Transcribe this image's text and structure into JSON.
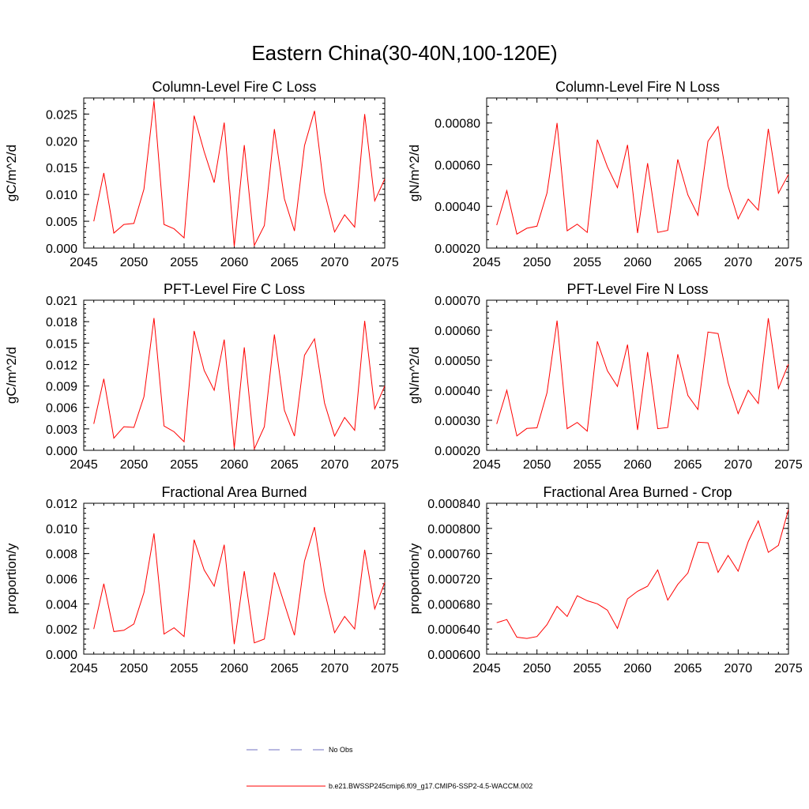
{
  "figure": {
    "title": "Eastern China(30-40N,100-120E)"
  },
  "chart_data": [
    {
      "type": "line",
      "title": "Column-Level Fire C Loss",
      "xlabel": "",
      "ylabel": "gC/m^2/d",
      "xlim": [
        2045,
        2075
      ],
      "ylim": [
        0,
        0.028
      ],
      "xticks": [
        2045,
        2050,
        2055,
        2060,
        2065,
        2070,
        2075
      ],
      "xticklabels": [
        "2045",
        "2050",
        "2055",
        "2060",
        "2065",
        "2070",
        "2075"
      ],
      "yticks": [
        0,
        0.005,
        0.01,
        0.015,
        0.02,
        0.025
      ],
      "yticklabels": [
        "0.000",
        "0.005",
        "0.010",
        "0.015",
        "0.020",
        "0.025"
      ],
      "yminor": 0.001,
      "x": [
        2046,
        2047,
        2048,
        2049,
        2050,
        2051,
        2052,
        2053,
        2054,
        2055,
        2056,
        2057,
        2058,
        2059,
        2060,
        2061,
        2062,
        2063,
        2064,
        2065,
        2066,
        2067,
        2068,
        2069,
        2070,
        2071,
        2072,
        2073,
        2074,
        2075
      ],
      "series": [
        {
          "name": "b.e21.BWSSP245cmip6.f09_g17.CMIP6-SSP2-4.5-WACCM.002",
          "color": "#ff0000",
          "values": [
            0.005,
            0.014,
            0.0028,
            0.0044,
            0.0046,
            0.011,
            0.0275,
            0.0044,
            0.0036,
            0.0019,
            0.0247,
            0.018,
            0.0122,
            0.0234,
            0.0003,
            0.0192,
            0.0005,
            0.0042,
            0.0222,
            0.0092,
            0.0032,
            0.0191,
            0.0256,
            0.0104,
            0.003,
            0.0062,
            0.0039,
            0.025,
            0.0088,
            0.0129
          ]
        }
      ]
    },
    {
      "type": "line",
      "title": "Column-Level Fire N Loss",
      "xlabel": "",
      "ylabel": "gN/m^2/d",
      "xlim": [
        2045,
        2075
      ],
      "ylim": [
        0.0002,
        0.00092
      ],
      "xticks": [
        2045,
        2050,
        2055,
        2060,
        2065,
        2070,
        2075
      ],
      "xticklabels": [
        "2045",
        "2050",
        "2055",
        "2060",
        "2065",
        "2070",
        "2075"
      ],
      "yticks": [
        0.0002,
        0.0004,
        0.0006,
        0.0008
      ],
      "yticklabels": [
        "0.00020",
        "0.00040",
        "0.00060",
        "0.00080"
      ],
      "yminor": 4e-05,
      "x": [
        2046,
        2047,
        2048,
        2049,
        2050,
        2051,
        2052,
        2053,
        2054,
        2055,
        2056,
        2057,
        2058,
        2059,
        2060,
        2061,
        2062,
        2063,
        2064,
        2065,
        2066,
        2067,
        2068,
        2069,
        2070,
        2071,
        2072,
        2073,
        2074,
        2075
      ],
      "series": [
        {
          "name": "b.e21.BWSSP245cmip6.f09_g17.CMIP6-SSP2-4.5-WACCM.002",
          "color": "#ff0000",
          "values": [
            0.00031,
            0.000475,
            0.000267,
            0.000295,
            0.000305,
            0.000465,
            0.0008,
            0.000283,
            0.000315,
            0.000275,
            0.00072,
            0.00059,
            0.00049,
            0.000695,
            0.000272,
            0.000607,
            0.000275,
            0.000285,
            0.000625,
            0.000455,
            0.000357,
            0.000712,
            0.000783,
            0.000497,
            0.00034,
            0.000435,
            0.000382,
            0.000772,
            0.000463,
            0.000553
          ]
        }
      ]
    },
    {
      "type": "line",
      "title": "PFT-Level Fire C Loss",
      "xlabel": "",
      "ylabel": "gC/m^2/d",
      "xlim": [
        2045,
        2075
      ],
      "ylim": [
        0,
        0.021
      ],
      "xticks": [
        2045,
        2050,
        2055,
        2060,
        2065,
        2070,
        2075
      ],
      "xticklabels": [
        "2045",
        "2050",
        "2055",
        "2060",
        "2065",
        "2070",
        "2075"
      ],
      "yticks": [
        0,
        0.003,
        0.006,
        0.009,
        0.012,
        0.015,
        0.018,
        0.021
      ],
      "yticklabels": [
        "0.000",
        "0.003",
        "0.006",
        "0.009",
        "0.012",
        "0.015",
        "0.018",
        "0.021"
      ],
      "yminor": 0.0006,
      "x": [
        2046,
        2047,
        2048,
        2049,
        2050,
        2051,
        2052,
        2053,
        2054,
        2055,
        2056,
        2057,
        2058,
        2059,
        2060,
        2061,
        2062,
        2063,
        2064,
        2065,
        2066,
        2067,
        2068,
        2069,
        2070,
        2071,
        2072,
        2073,
        2074,
        2075
      ],
      "series": [
        {
          "name": "b.e21.BWSSP245cmip6.f09_g17.CMIP6-SSP2-4.5-WACCM.002",
          "color": "#ff0000",
          "values": [
            0.0037,
            0.01,
            0.0017,
            0.0033,
            0.0032,
            0.0075,
            0.0185,
            0.0034,
            0.0026,
            0.0012,
            0.0167,
            0.0112,
            0.0084,
            0.0155,
            0.0003,
            0.0144,
            0.0002,
            0.0033,
            0.0162,
            0.0056,
            0.002,
            0.0133,
            0.0156,
            0.0066,
            0.002,
            0.0046,
            0.0028,
            0.0181,
            0.0058,
            0.009
          ]
        }
      ]
    },
    {
      "type": "line",
      "title": "PFT-Level Fire N Loss",
      "xlabel": "",
      "ylabel": "gN/m^2/d",
      "xlim": [
        2045,
        2075
      ],
      "ylim": [
        0.0002,
        0.0007
      ],
      "xticks": [
        2045,
        2050,
        2055,
        2060,
        2065,
        2070,
        2075
      ],
      "xticklabels": [
        "2045",
        "2050",
        "2055",
        "2060",
        "2065",
        "2070",
        "2075"
      ],
      "yticks": [
        0.0002,
        0.0003,
        0.0004,
        0.0005,
        0.0006,
        0.0007
      ],
      "yticklabels": [
        "0.00020",
        "0.00030",
        "0.00040",
        "0.00050",
        "0.00060",
        "0.00070"
      ],
      "yminor": 2e-05,
      "x": [
        2046,
        2047,
        2048,
        2049,
        2050,
        2051,
        2052,
        2053,
        2054,
        2055,
        2056,
        2057,
        2058,
        2059,
        2060,
        2061,
        2062,
        2063,
        2064,
        2065,
        2066,
        2067,
        2068,
        2069,
        2070,
        2071,
        2072,
        2073,
        2074,
        2075
      ],
      "series": [
        {
          "name": "b.e21.BWSSP245cmip6.f09_g17.CMIP6-SSP2-4.5-WACCM.002",
          "color": "#ff0000",
          "values": [
            0.000288,
            0.0004,
            0.000248,
            0.000273,
            0.000275,
            0.000392,
            0.000632,
            0.000272,
            0.000293,
            0.000264,
            0.000563,
            0.000465,
            0.000413,
            0.000552,
            0.000268,
            0.000527,
            0.000272,
            0.000276,
            0.00052,
            0.000383,
            0.000336,
            0.000594,
            0.000589,
            0.000425,
            0.000322,
            0.0004,
            0.000356,
            0.00064,
            0.000406,
            0.000487
          ]
        }
      ]
    },
    {
      "type": "line",
      "title": "Fractional Area Burned",
      "xlabel": "",
      "ylabel": "proportion/y",
      "xlim": [
        2045,
        2075
      ],
      "ylim": [
        0,
        0.012
      ],
      "xticks": [
        2045,
        2050,
        2055,
        2060,
        2065,
        2070,
        2075
      ],
      "xticklabels": [
        "2045",
        "2050",
        "2055",
        "2060",
        "2065",
        "2070",
        "2075"
      ],
      "yticks": [
        0,
        0.002,
        0.004,
        0.006,
        0.008,
        0.01,
        0.012
      ],
      "yticklabels": [
        "0.000",
        "0.002",
        "0.004",
        "0.006",
        "0.008",
        "0.010",
        "0.012"
      ],
      "yminor": 0.0004,
      "x": [
        2046,
        2047,
        2048,
        2049,
        2050,
        2051,
        2052,
        2053,
        2054,
        2055,
        2056,
        2057,
        2058,
        2059,
        2060,
        2061,
        2062,
        2063,
        2064,
        2065,
        2066,
        2067,
        2068,
        2069,
        2070,
        2071,
        2072,
        2073,
        2074,
        2075
      ],
      "series": [
        {
          "name": "b.e21.BWSSP245cmip6.f09_g17.CMIP6-SSP2-4.5-WACCM.002",
          "color": "#ff0000",
          "values": [
            0.002,
            0.0056,
            0.0018,
            0.0019,
            0.0024,
            0.0049,
            0.0096,
            0.0016,
            0.0021,
            0.0014,
            0.0091,
            0.0067,
            0.0054,
            0.0087,
            0.0008,
            0.0066,
            0.0009,
            0.0012,
            0.0065,
            0.004,
            0.0015,
            0.0074,
            0.0101,
            0.005,
            0.0017,
            0.003,
            0.002,
            0.0083,
            0.0036,
            0.0057
          ]
        }
      ]
    },
    {
      "type": "line",
      "title": "Fractional Area Burned - Crop",
      "xlabel": "",
      "ylabel": "proportion/y",
      "xlim": [
        2045,
        2075
      ],
      "ylim": [
        0.0006,
        0.00084
      ],
      "xticks": [
        2045,
        2050,
        2055,
        2060,
        2065,
        2070,
        2075
      ],
      "xticklabels": [
        "2045",
        "2050",
        "2055",
        "2060",
        "2065",
        "2070",
        "2075"
      ],
      "yticks": [
        0.0006,
        0.00064,
        0.00068,
        0.00072,
        0.00076,
        0.0008,
        0.00084
      ],
      "yticklabels": [
        "0.000600",
        "0.000640",
        "0.000680",
        "0.000720",
        "0.000760",
        "0.000800",
        "0.000840"
      ],
      "yminor": 8e-06,
      "x": [
        2046,
        2047,
        2048,
        2049,
        2050,
        2051,
        2052,
        2053,
        2054,
        2055,
        2056,
        2057,
        2058,
        2059,
        2060,
        2061,
        2062,
        2063,
        2064,
        2065,
        2066,
        2067,
        2068,
        2069,
        2070,
        2071,
        2072,
        2073,
        2074,
        2075
      ],
      "series": [
        {
          "name": "b.e21.BWSSP245cmip6.f09_g17.CMIP6-SSP2-4.5-WACCM.002",
          "color": "#ff0000",
          "values": [
            0.00065,
            0.000655,
            0.000627,
            0.000625,
            0.000628,
            0.000647,
            0.000676,
            0.00066,
            0.000693,
            0.000685,
            0.00068,
            0.00067,
            0.000641,
            0.000688,
            0.0007,
            0.000708,
            0.000734,
            0.000686,
            0.000711,
            0.000729,
            0.000778,
            0.000777,
            0.00073,
            0.000757,
            0.000732,
            0.000779,
            0.000812,
            0.000762,
            0.000773,
            0.00083
          ]
        }
      ]
    }
  ],
  "legend": {
    "items": [
      {
        "label": "No Obs",
        "color": "#7070c0",
        "style": "dashed"
      },
      {
        "label": "b.e21.BWSSP245cmip6.f09_g17.CMIP6-SSP2-4.5-WACCM.002",
        "color": "#ff0000",
        "style": "solid"
      }
    ]
  }
}
